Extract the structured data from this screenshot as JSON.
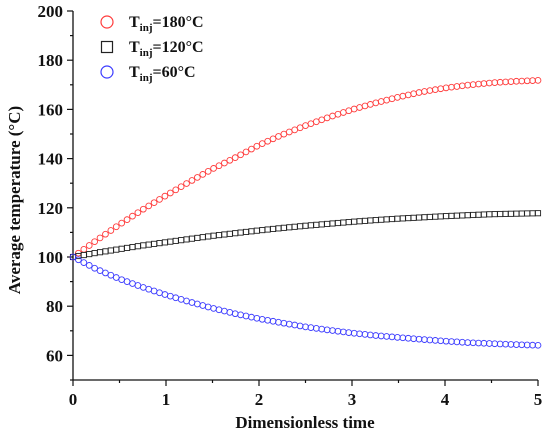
{
  "chart_data": {
    "type": "scatter",
    "xlabel": "Dimensionless time",
    "ylabel": "Average temperature (°C)",
    "xlim": [
      0,
      5
    ],
    "ylim": [
      50,
      200
    ],
    "x_ticks": [
      "0",
      "1",
      "2",
      "3",
      "4",
      "5"
    ],
    "y_ticks": [
      "60",
      "80",
      "100",
      "120",
      "140",
      "160",
      "180",
      "200"
    ],
    "grid": false,
    "legend_position": "top-left",
    "series": [
      {
        "name_main": "T",
        "name_sub": "inj",
        "name_rest": "=180°C",
        "marker": "circle",
        "color": "#ff3b3b",
        "x": [
          0,
          0.25,
          0.5,
          0.75,
          1,
          1.25,
          1.5,
          1.75,
          2,
          2.25,
          2.5,
          2.75,
          3,
          3.25,
          3.5,
          3.75,
          4,
          4.25,
          4.5,
          4.75,
          5
        ],
        "y": [
          100,
          106.7,
          113.2,
          119.3,
          125,
          130.5,
          135.8,
          140.5,
          145.5,
          149.7,
          153.4,
          156.8,
          159.9,
          162.6,
          165,
          167.1,
          168.7,
          169.9,
          170.8,
          171.4,
          171.8
        ]
      },
      {
        "name_main": "T",
        "name_sub": "inj",
        "name_rest": "=120°C",
        "marker": "square",
        "color": "#222222",
        "x": [
          0,
          0.25,
          0.5,
          0.75,
          1,
          1.25,
          1.5,
          1.75,
          2,
          2.25,
          2.5,
          2.75,
          3,
          3.25,
          3.5,
          3.75,
          4,
          4.25,
          4.5,
          4.75,
          5
        ],
        "y": [
          100,
          101.7,
          103.2,
          104.7,
          106,
          107.3,
          108.6,
          109.7,
          110.8,
          111.8,
          112.7,
          113.5,
          114.3,
          115,
          115.6,
          116.1,
          116.6,
          117,
          117.4,
          117.6,
          117.8
        ]
      },
      {
        "name_main": "T",
        "name_sub": "inj",
        "name_rest": "=60°C",
        "marker": "circle",
        "color": "#3b3bff",
        "x": [
          0,
          0.25,
          0.5,
          0.75,
          1,
          1.25,
          1.5,
          1.75,
          2,
          2.25,
          2.5,
          2.75,
          3,
          3.25,
          3.5,
          3.75,
          4,
          4.25,
          4.5,
          4.75,
          5
        ],
        "y": [
          100,
          95.1,
          91.1,
          87.7,
          84.6,
          81.8,
          79.2,
          76.9,
          74.9,
          73.2,
          71.6,
          70.3,
          69.1,
          68.1,
          67.3,
          66.5,
          65.8,
          65.2,
          64.8,
          64.4,
          64.1
        ]
      }
    ]
  }
}
